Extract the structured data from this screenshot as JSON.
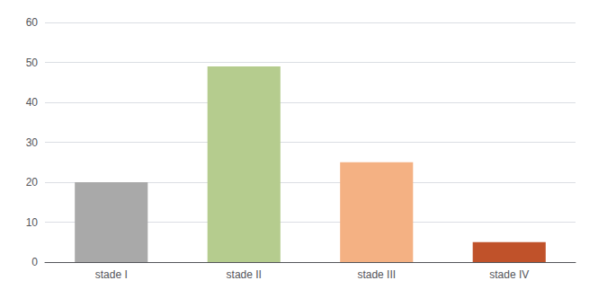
{
  "chart_data": {
    "type": "bar",
    "categories": [
      "stade I",
      "stade II",
      "stade III",
      "stade IV"
    ],
    "values": [
      20,
      49,
      25,
      5
    ],
    "colors": [
      "#a9a9a9",
      "#b5cc8e",
      "#f4b183",
      "#c0522a"
    ],
    "ylim": [
      0,
      60
    ],
    "yticks": [
      0,
      10,
      20,
      30,
      40,
      50,
      60
    ],
    "grid": true
  }
}
